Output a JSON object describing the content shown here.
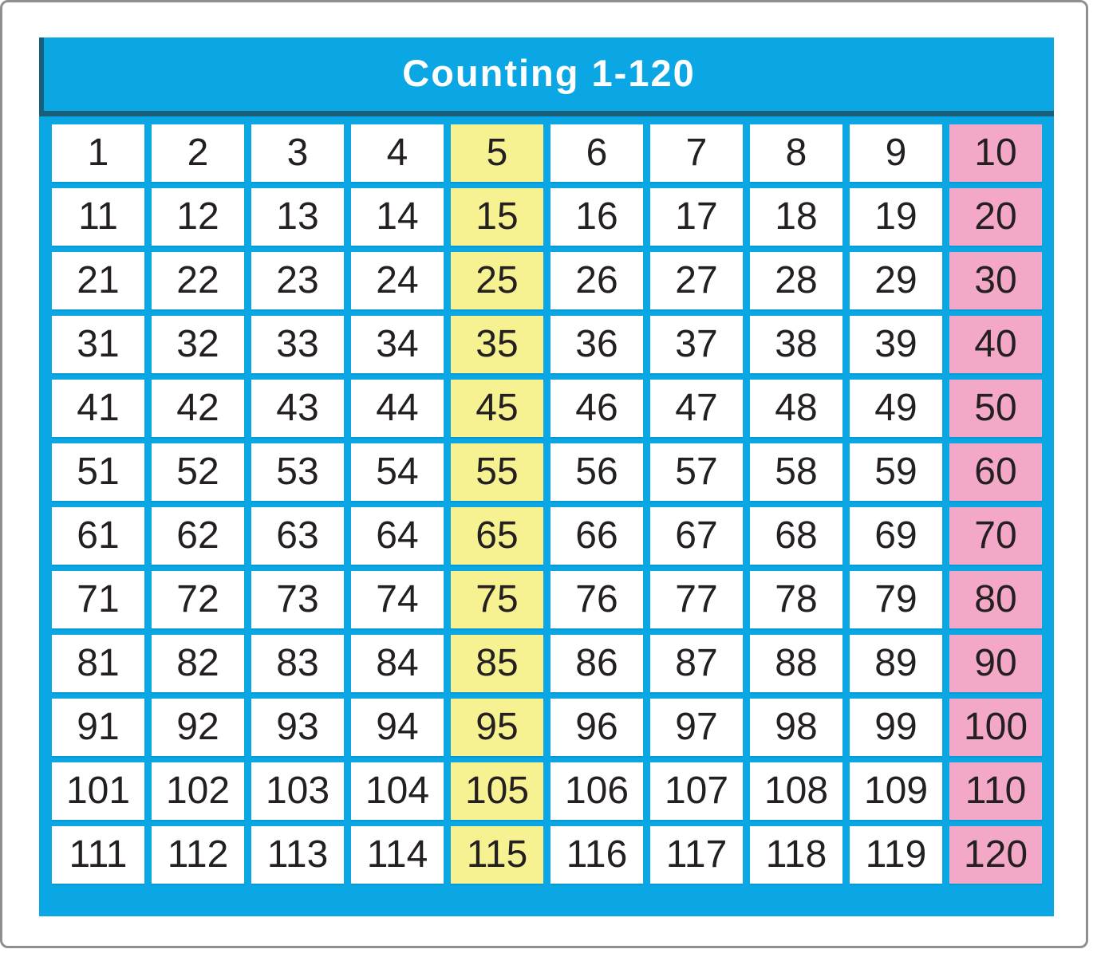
{
  "title": "Counting 1-120",
  "colors": {
    "panel_blue": "#0AA7E4",
    "title_edge_dark": "#175F7B",
    "highlight_yellow": "#F7F291",
    "highlight_pink": "#F3A8C7",
    "cell_text": "#241F21",
    "cell_white": "#FFFFFF",
    "outer_border_gray": "#8F8F8F",
    "title_text": "#FFFFFF"
  },
  "chart_data": {
    "type": "table",
    "title": "Counting 1-120",
    "columns": 10,
    "rows": [
      [
        1,
        2,
        3,
        4,
        5,
        6,
        7,
        8,
        9,
        10
      ],
      [
        11,
        12,
        13,
        14,
        15,
        16,
        17,
        18,
        19,
        20
      ],
      [
        21,
        22,
        23,
        24,
        25,
        26,
        27,
        28,
        29,
        30
      ],
      [
        31,
        32,
        33,
        34,
        35,
        36,
        37,
        38,
        39,
        40
      ],
      [
        41,
        42,
        43,
        44,
        45,
        46,
        47,
        48,
        49,
        50
      ],
      [
        51,
        52,
        53,
        54,
        55,
        56,
        57,
        58,
        59,
        60
      ],
      [
        61,
        62,
        63,
        64,
        65,
        66,
        67,
        68,
        69,
        70
      ],
      [
        71,
        72,
        73,
        74,
        75,
        76,
        77,
        78,
        79,
        80
      ],
      [
        81,
        82,
        83,
        84,
        85,
        86,
        87,
        88,
        89,
        90
      ],
      [
        91,
        92,
        93,
        94,
        95,
        96,
        97,
        98,
        99,
        100
      ],
      [
        101,
        102,
        103,
        104,
        105,
        106,
        107,
        108,
        109,
        110
      ],
      [
        111,
        112,
        113,
        114,
        115,
        116,
        117,
        118,
        119,
        120
      ]
    ],
    "highlighted_columns": {
      "fives_column_index": 5,
      "fives_highlight_color": "#F7F291",
      "fives_values": [
        5,
        15,
        25,
        35,
        45,
        55,
        65,
        75,
        85,
        95,
        105,
        115
      ],
      "tens_column_index": 10,
      "tens_highlight_color": "#F3A8C7",
      "tens_values": [
        10,
        20,
        30,
        40,
        50,
        60,
        70,
        80,
        90,
        100,
        110,
        120
      ]
    },
    "legend_position": "none",
    "grid": "on"
  }
}
